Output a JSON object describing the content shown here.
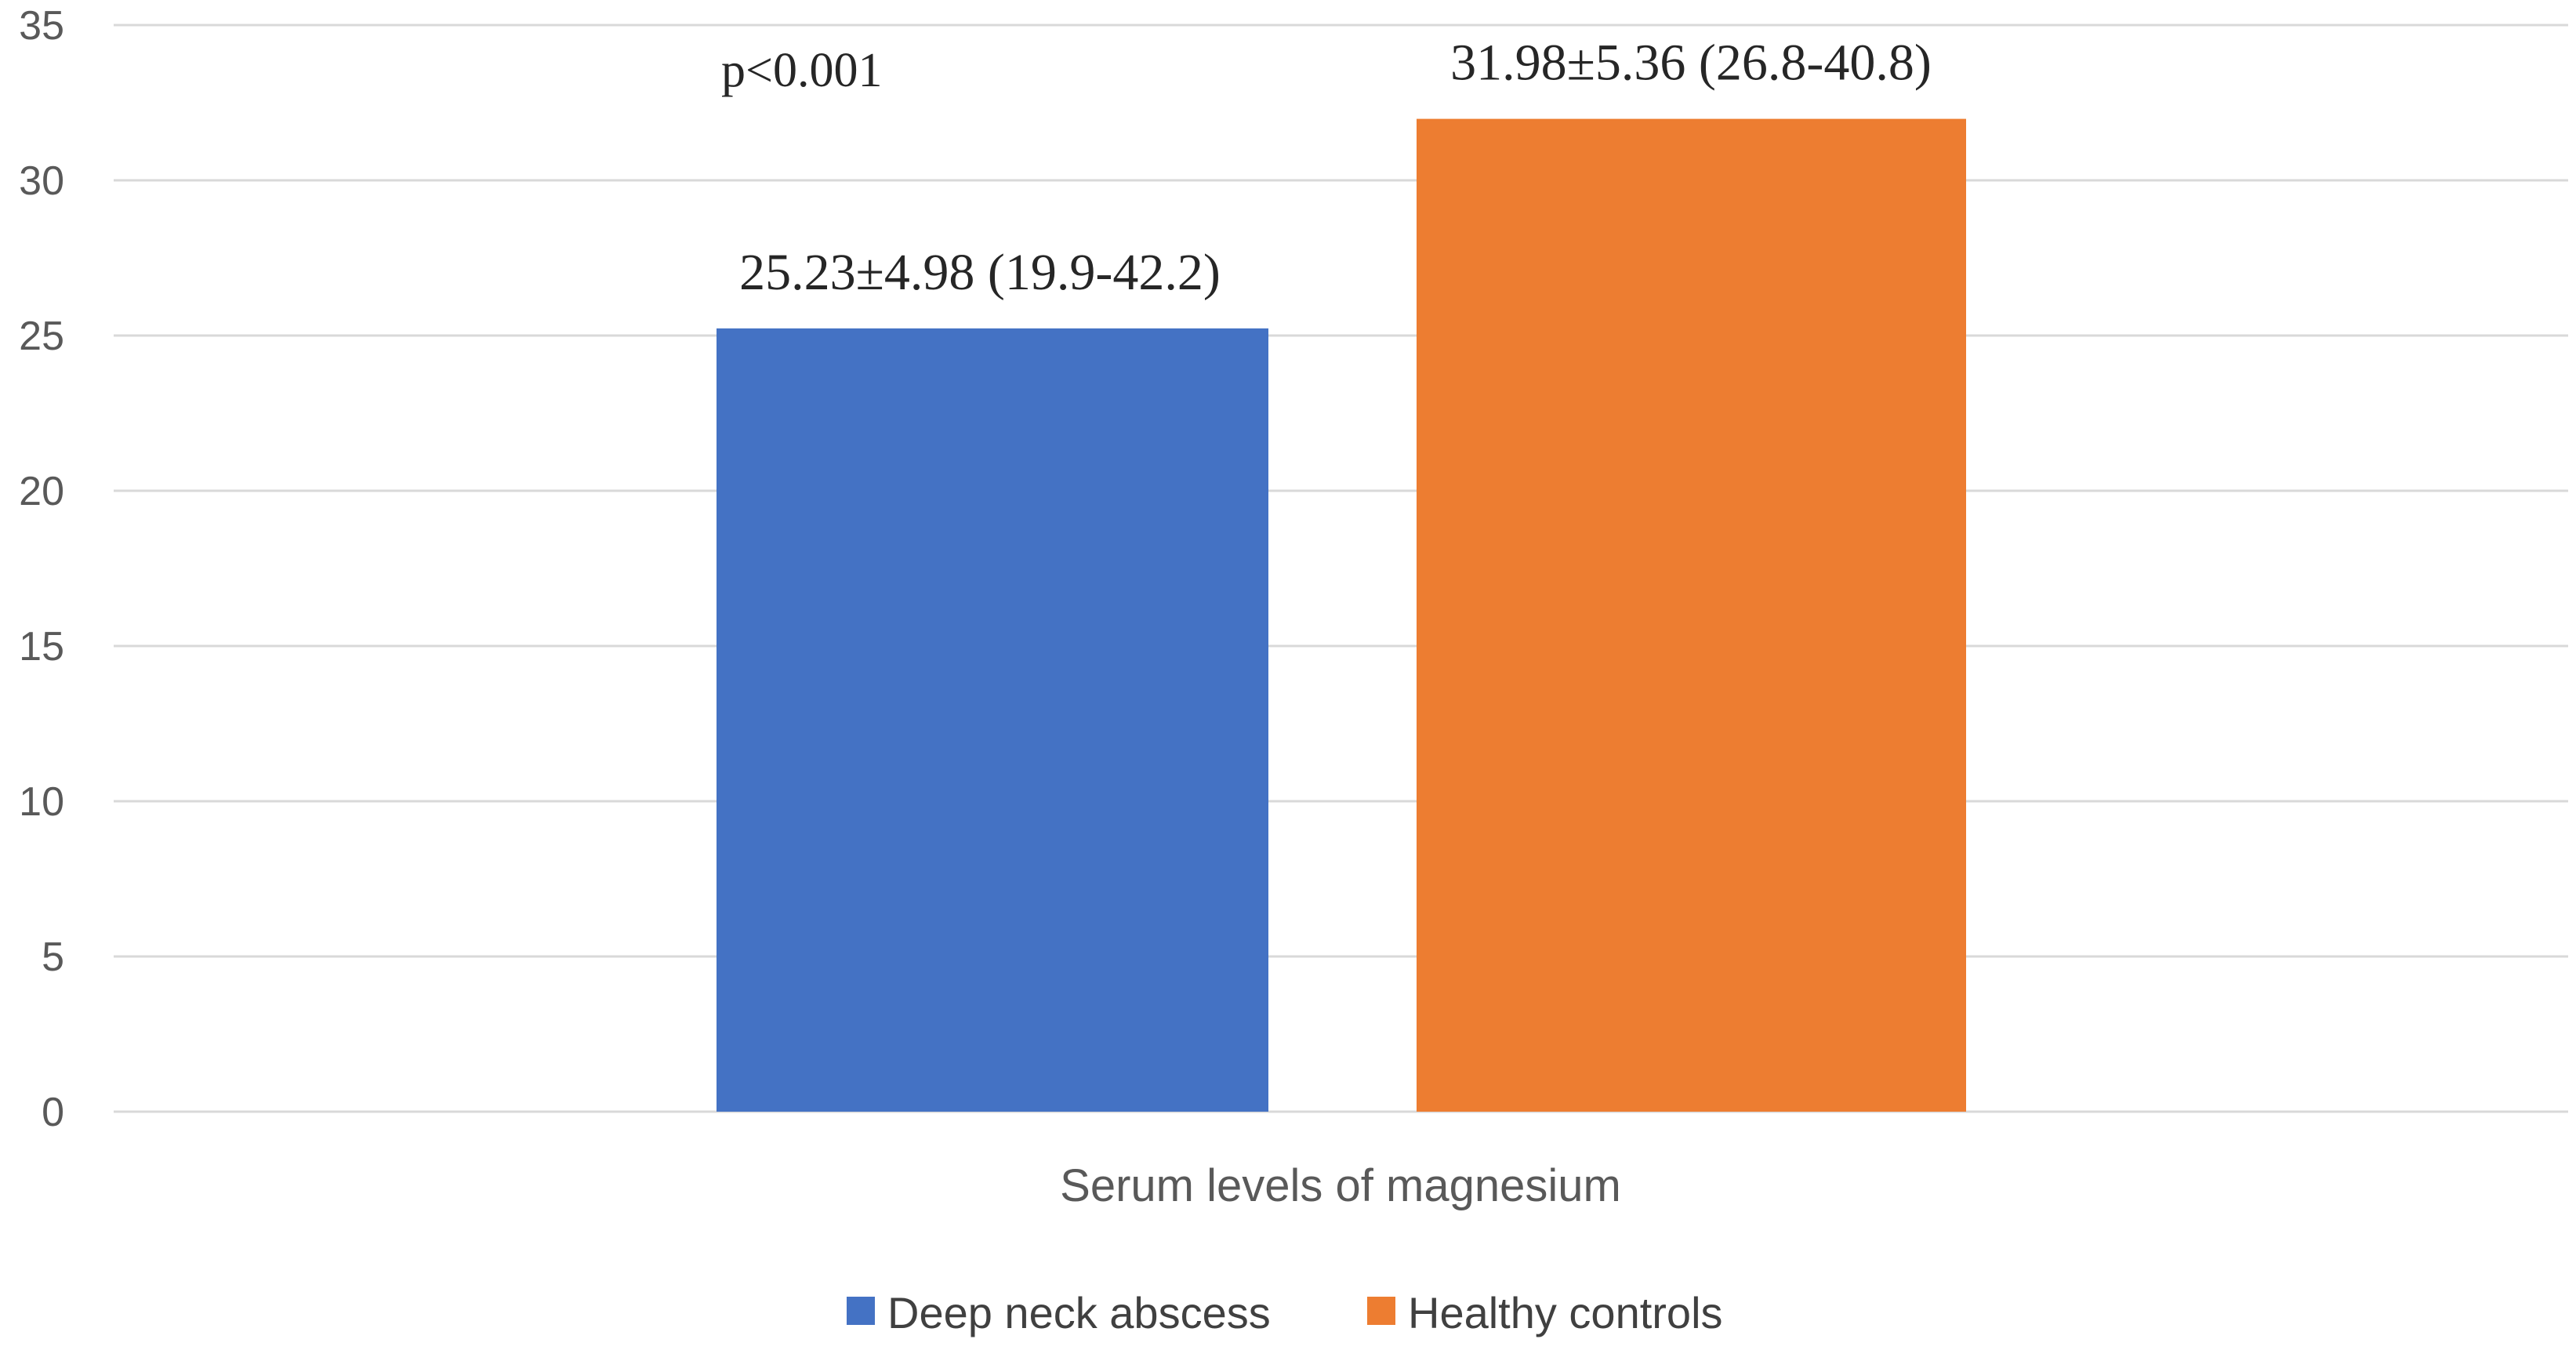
{
  "chart_data": {
    "type": "bar",
    "categories": [
      "Serum levels of magnesium"
    ],
    "series": [
      {
        "name": "Deep neck abscess",
        "values": [
          25.23
        ],
        "data_label": "25.23±4.98 (19.9-42.2)",
        "color": "#4472C4"
      },
      {
        "name": "Healthy controls",
        "values": [
          31.98
        ],
        "data_label": "31.98±5.36 (26.8-40.8)",
        "color": "#ED7D31"
      }
    ],
    "annotation": "p<0.001",
    "ylim": [
      0,
      35
    ],
    "yticks": [
      0,
      5,
      10,
      15,
      20,
      25,
      30,
      35
    ],
    "ytick_labels": [
      "0",
      "5",
      "10",
      "15",
      "20",
      "25",
      "30",
      "35"
    ],
    "grid": true,
    "legend": "bottom-center",
    "gridline_color": "#D9D9D9"
  }
}
